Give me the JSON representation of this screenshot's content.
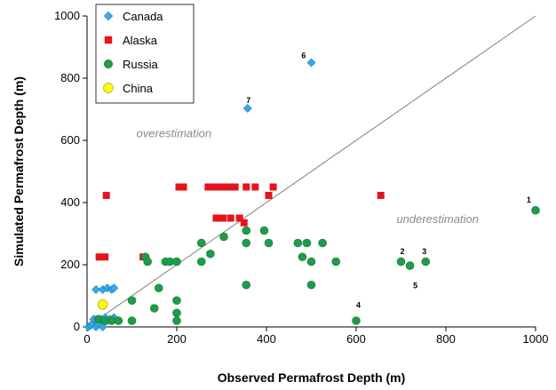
{
  "chart_data": {
    "type": "scatter",
    "xlabel": "Observed Permafrost Depth (m)",
    "ylabel": "Simulated Permafrost Depth (m)",
    "xlim": [
      0,
      1000
    ],
    "ylim": [
      0,
      1000
    ],
    "xticks": [
      "0",
      "200",
      "400",
      "600",
      "800",
      "1000"
    ],
    "yticks": [
      "0",
      "200",
      "400",
      "600",
      "800",
      "1000"
    ],
    "grid": false,
    "legend_position": "top-left",
    "identity_line": true,
    "annotations": [
      {
        "text": "overestimation",
        "x": 110,
        "y": 610
      },
      {
        "text": "underestimation",
        "x": 690,
        "y": 335
      }
    ],
    "point_labels": [
      {
        "text": "1",
        "x": 985,
        "y": 400
      },
      {
        "text": "2",
        "x": 703,
        "y": 235
      },
      {
        "text": "3",
        "x": 752,
        "y": 235
      },
      {
        "text": "4",
        "x": 605,
        "y": 62
      },
      {
        "text": "5",
        "x": 732,
        "y": 125
      },
      {
        "text": "6",
        "x": 483,
        "y": 865
      },
      {
        "text": "7",
        "x": 360,
        "y": 720
      }
    ],
    "series": [
      {
        "name": "Canada",
        "marker": "diamond",
        "color": "#33aaee",
        "points": [
          [
            3,
            0
          ],
          [
            8,
            5
          ],
          [
            12,
            10
          ],
          [
            15,
            25
          ],
          [
            20,
            0
          ],
          [
            25,
            10
          ],
          [
            30,
            25
          ],
          [
            35,
            0
          ],
          [
            40,
            30
          ],
          [
            45,
            20
          ],
          [
            50,
            25
          ],
          [
            60,
            30
          ],
          [
            20,
            120
          ],
          [
            35,
            120
          ],
          [
            45,
            125
          ],
          [
            55,
            120
          ],
          [
            60,
            125
          ],
          [
            500,
            850
          ],
          [
            358,
            703
          ]
        ]
      },
      {
        "name": "Alaska",
        "marker": "square",
        "color": "#e8121b",
        "points": [
          [
            27,
            225
          ],
          [
            40,
            225
          ],
          [
            43,
            423
          ],
          [
            125,
            225
          ],
          [
            205,
            450
          ],
          [
            215,
            450
          ],
          [
            270,
            450
          ],
          [
            283,
            450
          ],
          [
            290,
            450
          ],
          [
            300,
            450
          ],
          [
            310,
            450
          ],
          [
            320,
            450
          ],
          [
            330,
            450
          ],
          [
            355,
            450
          ],
          [
            375,
            450
          ],
          [
            415,
            450
          ],
          [
            288,
            350
          ],
          [
            303,
            350
          ],
          [
            320,
            350
          ],
          [
            340,
            350
          ],
          [
            350,
            335
          ],
          [
            405,
            423
          ],
          [
            655,
            423
          ]
        ]
      },
      {
        "name": "Russia",
        "marker": "circle",
        "color": "#1f9c4a",
        "points": [
          [
            25,
            25
          ],
          [
            40,
            20
          ],
          [
            55,
            20
          ],
          [
            70,
            20
          ],
          [
            100,
            20
          ],
          [
            100,
            85
          ],
          [
            130,
            225
          ],
          [
            135,
            210
          ],
          [
            150,
            60
          ],
          [
            160,
            125
          ],
          [
            175,
            210
          ],
          [
            185,
            210
          ],
          [
            200,
            210
          ],
          [
            200,
            85
          ],
          [
            200,
            45
          ],
          [
            200,
            20
          ],
          [
            255,
            270
          ],
          [
            255,
            210
          ],
          [
            275,
            235
          ],
          [
            305,
            290
          ],
          [
            355,
            270
          ],
          [
            355,
            310
          ],
          [
            355,
            135
          ],
          [
            395,
            310
          ],
          [
            405,
            270
          ],
          [
            470,
            270
          ],
          [
            480,
            225
          ],
          [
            490,
            270
          ],
          [
            500,
            210
          ],
          [
            500,
            135
          ],
          [
            525,
            270
          ],
          [
            555,
            210
          ],
          [
            600,
            20
          ],
          [
            700,
            210
          ],
          [
            720,
            197
          ],
          [
            755,
            210
          ],
          [
            1000,
            375
          ]
        ]
      },
      {
        "name": "China",
        "marker": "circle",
        "color": "#ffff00",
        "points": [
          [
            35,
            72
          ]
        ]
      }
    ]
  }
}
